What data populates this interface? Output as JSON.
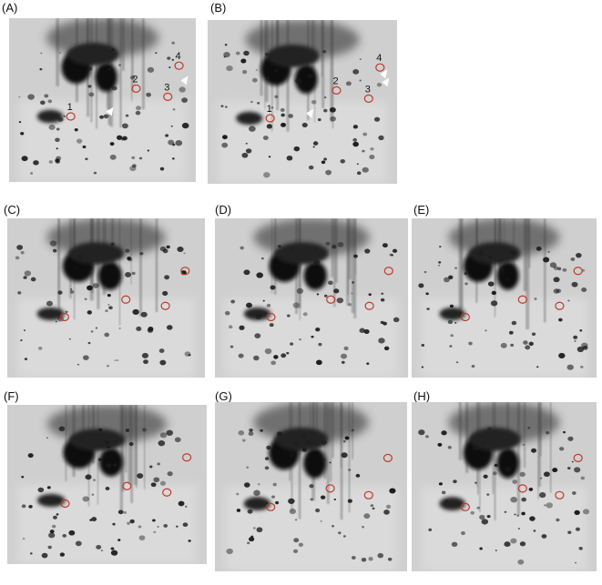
{
  "panels": [
    {
      "label": "(A)",
      "spot_labels": [
        "1",
        "2",
        "3",
        "4"
      ]
    },
    {
      "label": "(B)",
      "spot_labels": [
        "1",
        "2",
        "3",
        "4"
      ]
    },
    {
      "label": "(C)"
    },
    {
      "label": "(D)"
    },
    {
      "label": "(E)"
    },
    {
      "label": "(F)"
    },
    {
      "label": "(G)"
    },
    {
      "label": "(H)"
    }
  ]
}
